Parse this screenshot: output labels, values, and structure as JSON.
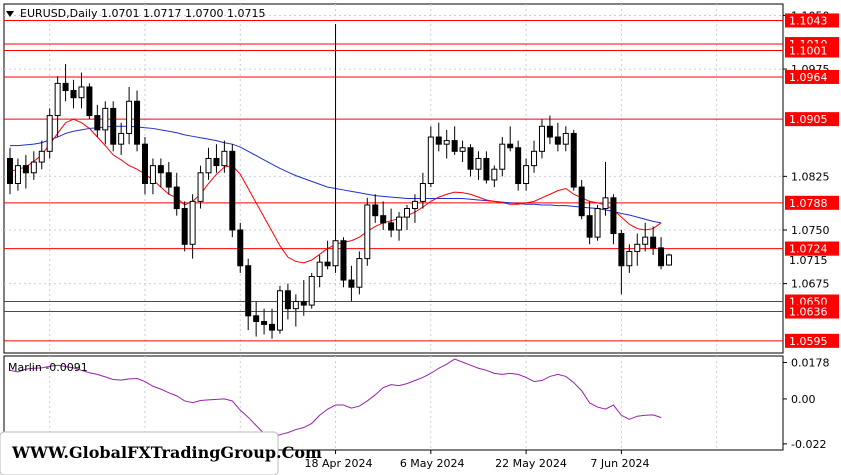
{
  "header": {
    "symbol_label": "EURUSD,Daily",
    "ohlc_label": "1.0701  1.0717  1.0700  1.0715"
  },
  "indicator": {
    "label": "Marlin -0.0091"
  },
  "watermark": "WWW.GlobalFXTradingGroup.Com",
  "colors": {
    "background": "#ffffff",
    "grid": "#c8d0dc",
    "candle": "#000000",
    "level": "#ff0000",
    "ma_fast": "#ff0000",
    "ma_slow": "#1f2fd1",
    "oscillator": "#9a1fb0"
  },
  "chart_data": [
    {
      "type": "candlestick",
      "title": "EURUSD,Daily",
      "ylim": [
        1.0578,
        1.1066
      ],
      "price_axis_ticks": [
        "1.1050",
        "1.0975",
        "1.0825",
        "1.0750",
        "1.0675"
      ],
      "x_tick_labels": [
        "18 Apr 2024",
        "6 May 2024",
        "22 May 2024",
        "7 Jun 2024"
      ],
      "x_tick_index": [
        41,
        53,
        65,
        77
      ],
      "grid": true,
      "horizontal_levels": [
        {
          "value": 1.1043,
          "label": "1.1043"
        },
        {
          "value": 1.101,
          "label": "1.1010"
        },
        {
          "value": 1.1001,
          "label": "1.1001"
        },
        {
          "value": 1.0964,
          "label": "1.0964"
        },
        {
          "value": 1.0905,
          "label": "1.0905"
        },
        {
          "value": 1.0788,
          "label": "1.0788"
        },
        {
          "value": 1.0724,
          "label": "1.0724"
        },
        {
          "value": 1.065,
          "label": "1.0650"
        },
        {
          "value": 1.0636,
          "label": "1.0636"
        },
        {
          "value": 1.0595,
          "label": "1.0595"
        }
      ],
      "current_price": {
        "value": 1.0715,
        "label": "1.0715"
      },
      "ohlc": [
        [
          1.085,
          1.0865,
          1.08,
          1.0815
        ],
        [
          1.0815,
          1.085,
          1.0805,
          1.084
        ],
        [
          1.084,
          1.0855,
          1.0808,
          1.083
        ],
        [
          1.083,
          1.086,
          1.082,
          1.0845
        ],
        [
          1.0845,
          1.0875,
          1.0835,
          1.086
        ],
        [
          1.086,
          1.092,
          1.085,
          1.091
        ],
        [
          1.091,
          1.0965,
          1.088,
          1.0955
        ],
        [
          1.0955,
          1.0982,
          1.093,
          1.0945
        ],
        [
          1.0945,
          1.096,
          1.092,
          1.0935
        ],
        [
          1.0935,
          1.097,
          1.092,
          1.095
        ],
        [
          1.095,
          1.0955,
          1.0905,
          1.091
        ],
        [
          1.091,
          1.0925,
          1.088,
          1.089
        ],
        [
          1.089,
          1.093,
          1.087,
          1.092
        ],
        [
          1.092,
          1.093,
          1.086,
          1.087
        ],
        [
          1.087,
          1.09,
          1.0855,
          1.0885
        ],
        [
          1.0885,
          1.095,
          1.087,
          1.093
        ],
        [
          1.093,
          1.0945,
          1.086,
          1.087
        ],
        [
          1.087,
          1.088,
          1.08,
          1.0815
        ],
        [
          1.0815,
          1.085,
          1.08,
          1.084
        ],
        [
          1.084,
          1.085,
          1.081,
          1.083
        ],
        [
          1.083,
          1.0845,
          1.08,
          1.081
        ],
        [
          1.081,
          1.083,
          1.077,
          1.078
        ],
        [
          1.078,
          1.079,
          1.072,
          1.073
        ],
        [
          1.073,
          1.08,
          1.071,
          1.079
        ],
        [
          1.079,
          1.084,
          1.078,
          1.083
        ],
        [
          1.083,
          1.0865,
          1.082,
          1.085
        ],
        [
          1.085,
          1.087,
          1.083,
          1.084
        ],
        [
          1.084,
          1.0875,
          1.083,
          1.086
        ],
        [
          1.086,
          1.087,
          1.074,
          1.075
        ],
        [
          1.075,
          1.076,
          1.069,
          1.07
        ],
        [
          1.07,
          1.071,
          1.061,
          1.063
        ],
        [
          1.063,
          1.065,
          1.0601,
          1.0622
        ],
        [
          1.0622,
          1.064,
          1.0604,
          1.0618
        ],
        [
          1.0618,
          1.064,
          1.0598,
          1.061
        ],
        [
          1.061,
          1.0672,
          1.0605,
          1.0665
        ],
        [
          1.0665,
          1.0675,
          1.0625,
          1.064
        ],
        [
          1.064,
          1.066,
          1.0615,
          1.065
        ],
        [
          1.065,
          1.068,
          1.063,
          1.0645
        ],
        [
          1.0645,
          1.069,
          1.064,
          1.0685
        ],
        [
          1.0685,
          1.0715,
          1.067,
          1.0705
        ],
        [
          1.0705,
          1.0735,
          1.0695,
          1.07
        ],
        [
          1.07,
          1.1038,
          1.069,
          1.0735
        ],
        [
          1.0735,
          1.074,
          1.067,
          1.068
        ],
        [
          1.068,
          1.07,
          1.065,
          1.067
        ],
        [
          1.067,
          1.072,
          1.066,
          1.071
        ],
        [
          1.071,
          1.0795,
          1.07,
          1.0785
        ],
        [
          1.0785,
          1.08,
          1.076,
          1.077
        ],
        [
          1.077,
          1.079,
          1.075,
          1.076
        ],
        [
          1.076,
          1.078,
          1.074,
          1.075
        ],
        [
          1.075,
          1.0775,
          1.0735,
          1.0768
        ],
        [
          1.0768,
          1.0785,
          1.075,
          1.078
        ],
        [
          1.078,
          1.08,
          1.076,
          1.079
        ],
        [
          1.079,
          1.083,
          1.078,
          1.0815
        ],
        [
          1.0815,
          1.0895,
          1.081,
          1.088
        ],
        [
          1.088,
          1.09,
          1.086,
          1.087
        ],
        [
          1.087,
          1.089,
          1.085,
          1.0875
        ],
        [
          1.0875,
          1.0895,
          1.0855,
          1.086
        ],
        [
          1.086,
          1.0875,
          1.0845,
          1.0865
        ],
        [
          1.0865,
          1.087,
          1.0825,
          1.0835
        ],
        [
          1.0835,
          1.086,
          1.082,
          1.085
        ],
        [
          1.085,
          1.086,
          1.0815,
          1.082
        ],
        [
          1.082,
          1.084,
          1.081,
          1.0835
        ],
        [
          1.0835,
          1.088,
          1.0825,
          1.087
        ],
        [
          1.087,
          1.0895,
          1.086,
          1.0865
        ],
        [
          1.0865,
          1.0875,
          1.0805,
          1.0815
        ],
        [
          1.0815,
          1.085,
          1.0805,
          1.084
        ],
        [
          1.084,
          1.0875,
          1.083,
          1.086
        ],
        [
          1.086,
          1.0905,
          1.085,
          1.0895
        ],
        [
          1.0895,
          1.091,
          1.087,
          1.088
        ],
        [
          1.088,
          1.09,
          1.086,
          1.087
        ],
        [
          1.087,
          1.0895,
          1.086,
          1.0885
        ],
        [
          1.0885,
          1.089,
          1.0805,
          1.081
        ],
        [
          1.081,
          1.082,
          1.0765,
          1.077
        ],
        [
          1.077,
          1.079,
          1.073,
          1.074
        ],
        [
          1.074,
          1.0785,
          1.0735,
          1.078
        ],
        [
          1.078,
          1.0845,
          1.077,
          1.0795
        ],
        [
          1.0795,
          1.08,
          1.073,
          1.0745
        ],
        [
          1.0745,
          1.075,
          1.066,
          1.07
        ],
        [
          1.07,
          1.073,
          1.069,
          1.072
        ],
        [
          1.072,
          1.0745,
          1.07,
          1.073
        ],
        [
          1.073,
          1.076,
          1.072,
          1.074
        ],
        [
          1.074,
          1.0755,
          1.0715,
          1.0725
        ],
        [
          1.0725,
          1.074,
          1.0695,
          1.07
        ],
        [
          1.0701,
          1.0717,
          1.07,
          1.0715
        ]
      ],
      "ma_fast": [
        1.0832,
        1.0835,
        1.0838,
        1.0846,
        1.0855,
        1.087,
        1.0885,
        1.09,
        1.0905,
        1.09,
        1.0892,
        1.088,
        1.0868,
        1.0855,
        1.0848,
        1.084,
        1.0835,
        1.0828,
        1.082,
        1.081,
        1.08,
        1.0795,
        1.0785,
        1.079,
        1.08,
        1.0815,
        1.0828,
        1.0838,
        1.084,
        1.0828,
        1.0808,
        1.0788,
        1.0768,
        1.0748,
        1.0728,
        1.0712,
        1.0706,
        1.0704,
        1.0708,
        1.0716,
        1.0724,
        1.073,
        1.0733,
        1.0735,
        1.074,
        1.0748,
        1.0755,
        1.076,
        1.0763,
        1.0766,
        1.077,
        1.0775,
        1.0782,
        1.079,
        1.0796,
        1.08,
        1.0803,
        1.0802,
        1.08,
        1.0796,
        1.0792,
        1.079,
        1.0788,
        1.0786,
        1.0786,
        1.0788,
        1.079,
        1.0795,
        1.08,
        1.0805,
        1.0808,
        1.08,
        1.0795,
        1.079,
        1.0788,
        1.0785,
        1.0778,
        1.0768,
        1.0758,
        1.0752,
        1.075,
        1.0752,
        1.076
      ],
      "ma_slow": [
        1.0868,
        1.0868,
        1.0869,
        1.087,
        1.0872,
        1.0876,
        1.088,
        1.0885,
        1.0888,
        1.089,
        1.0892,
        1.0893,
        1.0894,
        1.0895,
        1.0895,
        1.0895,
        1.0894,
        1.0893,
        1.0892,
        1.089,
        1.0888,
        1.0886,
        1.0883,
        1.0881,
        1.0879,
        1.0877,
        1.0875,
        1.0872,
        1.087,
        1.0866,
        1.086,
        1.0854,
        1.0848,
        1.0842,
        1.0836,
        1.0831,
        1.0826,
        1.0822,
        1.0818,
        1.0814,
        1.081,
        1.0808,
        1.0806,
        1.0804,
        1.0802,
        1.08,
        1.0798,
        1.0797,
        1.0796,
        1.0795,
        1.0794,
        1.0794,
        1.0794,
        1.0794,
        1.0794,
        1.0794,
        1.0794,
        1.0794,
        1.0793,
        1.0792,
        1.0791,
        1.079,
        1.0789,
        1.0788,
        1.0787,
        1.0786,
        1.0786,
        1.0785,
        1.0785,
        1.0784,
        1.0784,
        1.0783,
        1.0782,
        1.0781,
        1.078,
        1.0778,
        1.0776,
        1.0773,
        1.0771,
        1.0768,
        1.0765,
        1.0762,
        1.076
      ]
    },
    {
      "type": "line",
      "title": "Marlin -0.0091",
      "ylim": [
        -0.025,
        0.021
      ],
      "axis_ticks": [
        {
          "value": 0.0178,
          "label": "0.0178"
        },
        {
          "value": 0.0,
          "label": "0.00"
        },
        {
          "value": -0.022,
          "label": "-0.022"
        }
      ],
      "values": [
        0.014,
        0.0132,
        0.0146,
        0.015,
        0.0152,
        0.016,
        0.0165,
        0.0158,
        0.0152,
        0.014,
        0.0128,
        0.012,
        0.0108,
        0.0095,
        0.0092,
        0.0098,
        0.01,
        0.0085,
        0.0062,
        0.0048,
        0.003,
        0.0015,
        -0.001,
        -0.0018,
        -0.0008,
        -0.0005,
        -0.0002,
        0.0,
        -0.001,
        -0.0055,
        -0.009,
        -0.013,
        -0.017,
        -0.019,
        -0.0175,
        -0.0165,
        -0.015,
        -0.014,
        -0.012,
        -0.008,
        -0.005,
        -0.003,
        -0.003,
        -0.0045,
        -0.0035,
        -0.001,
        0.002,
        0.0055,
        0.007,
        0.0065,
        0.0075,
        0.009,
        0.0105,
        0.0125,
        0.015,
        0.017,
        0.0195,
        0.018,
        0.0165,
        0.015,
        0.014,
        0.0125,
        0.012,
        0.0125,
        0.012,
        0.0105,
        0.0085,
        0.009,
        0.011,
        0.012,
        0.011,
        0.008,
        0.004,
        -0.002,
        -0.004,
        -0.005,
        -0.003,
        -0.008,
        -0.01,
        -0.0085,
        -0.008,
        -0.0078,
        -0.0091
      ]
    }
  ]
}
